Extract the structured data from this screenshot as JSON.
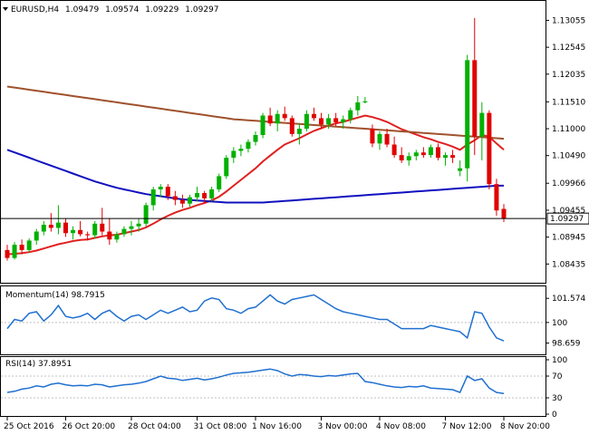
{
  "header": {
    "symbol": "EURUSD,H4",
    "open": "1.09479",
    "high": "1.09574",
    "low": "1.09229",
    "close": "1.09297"
  },
  "colors": {
    "bull": "#00b000",
    "bear": "#e00000",
    "ma_fast": "#e02020",
    "ma_mid": "#a0522d",
    "ma_slow": "#1010c0",
    "indicator": "#2070d0",
    "grid": "#c0c0c0"
  },
  "chart_data": [
    {
      "type": "candlestick",
      "title": "EURUSD,H4",
      "x_labels": [
        "25 Oct 2016",
        "26 Oct 20:00",
        "28 Oct 04:00",
        "31 Oct 08:00",
        "1 Nov 16:00",
        "3 Nov 00:00",
        "4 Nov 08:00",
        "7 Nov 12:00",
        "8 Nov 20:00"
      ],
      "y_ticks": [
        "1.13055",
        "1.12545",
        "1.12035",
        "1.11510",
        "1.11000",
        "1.10490",
        "1.09966",
        "1.09455",
        "1.08945",
        "1.08435"
      ],
      "ylim": [
        1.082,
        1.132
      ],
      "current_price": "1.09297",
      "candles": [
        [
          1.087,
          1.088,
          1.085,
          1.0855
        ],
        [
          1.0855,
          1.0885,
          1.0852,
          1.088
        ],
        [
          1.088,
          1.089,
          1.0862,
          1.087
        ],
        [
          1.087,
          1.0892,
          1.0866,
          1.0888
        ],
        [
          1.0888,
          1.091,
          1.088,
          1.0905
        ],
        [
          1.0905,
          1.0925,
          1.0898,
          1.0918
        ],
        [
          1.0918,
          1.094,
          1.0905,
          1.0912
        ],
        [
          1.0912,
          1.0955,
          1.09,
          1.0922
        ],
        [
          1.0922,
          1.093,
          1.0895,
          1.0902
        ],
        [
          1.0902,
          1.0915,
          1.089,
          1.0908
        ],
        [
          1.0908,
          1.0925,
          1.0896,
          1.09
        ],
        [
          1.09,
          1.0905,
          1.0888,
          1.0898
        ],
        [
          1.0898,
          1.0925,
          1.0892,
          1.092
        ],
        [
          1.092,
          1.095,
          1.0898,
          1.0905
        ],
        [
          1.0905,
          1.093,
          1.088,
          1.089
        ],
        [
          1.089,
          1.0905,
          1.0884,
          1.09
        ],
        [
          1.09,
          1.0915,
          1.0895,
          1.091
        ],
        [
          1.091,
          1.0925,
          1.0898,
          1.0915
        ],
        [
          1.0915,
          1.093,
          1.0905,
          1.092
        ],
        [
          1.092,
          1.096,
          1.0915,
          1.0955
        ],
        [
          1.0955,
          1.099,
          1.0945,
          1.0985
        ],
        [
          1.0985,
          1.0995,
          1.097,
          1.099
        ],
        [
          1.099,
          1.0995,
          1.0965,
          1.0972
        ],
        [
          1.0972,
          1.0982,
          1.0955,
          1.0965
        ],
        [
          1.0965,
          1.0975,
          1.095,
          1.0958
        ],
        [
          1.0958,
          1.0975,
          1.0952,
          1.097
        ],
        [
          1.097,
          1.099,
          1.0962,
          1.0978
        ],
        [
          1.0978,
          1.0982,
          1.0958,
          1.0968
        ],
        [
          1.0968,
          1.099,
          1.0962,
          1.0985
        ],
        [
          1.0985,
          1.1015,
          1.098,
          1.101
        ],
        [
          1.101,
          1.105,
          1.1005,
          1.1045
        ],
        [
          1.1045,
          1.1065,
          1.1035,
          1.1058
        ],
        [
          1.1058,
          1.107,
          1.1048,
          1.1062
        ],
        [
          1.1062,
          1.108,
          1.1055,
          1.1075
        ],
        [
          1.1075,
          1.1095,
          1.1068,
          1.1088
        ],
        [
          1.1088,
          1.113,
          1.1082,
          1.1125
        ],
        [
          1.1125,
          1.114,
          1.1105,
          1.111
        ],
        [
          1.111,
          1.1135,
          1.1095,
          1.1128
        ],
        [
          1.1128,
          1.1142,
          1.1115,
          1.112
        ],
        [
          1.112,
          1.1125,
          1.1085,
          1.109
        ],
        [
          1.109,
          1.111,
          1.107,
          1.11
        ],
        [
          1.11,
          1.1135,
          1.1095,
          1.1128
        ],
        [
          1.1128,
          1.114,
          1.1115,
          1.112
        ],
        [
          1.112,
          1.113,
          1.11,
          1.1108
        ],
        [
          1.1108,
          1.1128,
          1.11,
          1.112
        ],
        [
          1.112,
          1.113,
          1.1105,
          1.1112
        ],
        [
          1.1112,
          1.1125,
          1.11,
          1.1118
        ],
        [
          1.1118,
          1.114,
          1.111,
          1.1135
        ],
        [
          1.1135,
          1.1162,
          1.1125,
          1.115
        ],
        [
          1.115,
          1.116,
          1.1148,
          1.1152
        ],
        [
          1.11,
          1.1108,
          1.1065,
          1.1072
        ],
        [
          1.1072,
          1.1095,
          1.106,
          1.109
        ],
        [
          1.109,
          1.11,
          1.1065,
          1.107
        ],
        [
          1.107,
          1.1085,
          1.1045,
          1.105
        ],
        [
          1.105,
          1.1065,
          1.1035,
          1.104
        ],
        [
          1.104,
          1.1055,
          1.103,
          1.1048
        ],
        [
          1.1048,
          1.106,
          1.104,
          1.1055
        ],
        [
          1.1055,
          1.1065,
          1.1045,
          1.105
        ],
        [
          1.105,
          1.107,
          1.1045,
          1.1065
        ],
        [
          1.1065,
          1.1072,
          1.104,
          1.1045
        ],
        [
          1.1045,
          1.1055,
          1.103,
          1.105
        ],
        [
          1.105,
          1.106,
          1.1035,
          1.1045
        ],
        [
          1.102,
          1.104,
          1.101,
          1.1025
        ],
        [
          1.1025,
          1.124,
          1.1,
          1.123
        ],
        [
          1.123,
          1.131,
          1.105,
          1.1085
        ],
        [
          1.1085,
          1.115,
          1.104,
          1.113
        ],
        [
          1.113,
          1.1135,
          1.0985,
          1.0995
        ],
        [
          1.0995,
          1.1005,
          1.0935,
          1.0945
        ],
        [
          1.0948,
          1.0957,
          1.0923,
          1.093
        ]
      ],
      "series": [
        {
          "name": "",
          "values": [
            1.0862,
            1.0863,
            1.0864,
            1.0866,
            1.0869,
            1.0873,
            1.0877,
            1.0881,
            1.0884,
            1.0887,
            1.0889,
            1.089,
            1.0893,
            1.0896,
            1.0898,
            1.0899,
            1.0902,
            1.0905,
            1.0908,
            1.0913,
            1.092,
            1.0928,
            1.0935,
            1.0941,
            1.0946,
            1.095,
            1.0955,
            1.0959,
            1.0964,
            1.0971,
            1.0981,
            1.0992,
            1.1003,
            1.1014,
            1.1025,
            1.1038,
            1.1049,
            1.106,
            1.107,
            1.1076,
            1.1082,
            1.1089,
            1.1096,
            1.1101,
            1.1106,
            1.111,
            1.1113,
            1.1117,
            1.1121,
            1.1125,
            1.1122,
            1.1118,
            1.1113,
            1.1106,
            1.1099,
            1.1094,
            1.1089,
            1.1084,
            1.108,
            1.1075,
            1.1071,
            1.1066,
            1.106,
            1.107,
            1.1078,
            1.1088,
            1.1085,
            1.1072,
            1.106
          ]
        },
        {
          "name": "",
          "values": [
            1.118,
            1.1178,
            1.1176,
            1.1174,
            1.1172,
            1.117,
            1.1168,
            1.1166,
            1.1164,
            1.1162,
            1.116,
            1.1158,
            1.1156,
            1.1154,
            1.1152,
            1.115,
            1.1148,
            1.1146,
            1.1144,
            1.1142,
            1.114,
            1.1138,
            1.1136,
            1.1134,
            1.1132,
            1.113,
            1.1128,
            1.1126,
            1.1124,
            1.1122,
            1.112,
            1.1118,
            1.1117,
            1.1116,
            1.1115,
            1.1114,
            1.1113,
            1.1112,
            1.1111,
            1.111,
            1.1109,
            1.1108,
            1.1107,
            1.1106,
            1.1105,
            1.1104,
            1.1103,
            1.1102,
            1.1101,
            1.11,
            1.1099,
            1.1098,
            1.1097,
            1.1096,
            1.1095,
            1.1094,
            1.1093,
            1.1092,
            1.1091,
            1.109,
            1.1089,
            1.1088,
            1.1087,
            1.1086,
            1.1085,
            1.1084,
            1.1083,
            1.1082,
            1.1081
          ]
        },
        {
          "name": "",
          "values": [
            1.106,
            1.1055,
            1.105,
            1.1045,
            1.104,
            1.1035,
            1.103,
            1.1025,
            1.102,
            1.1015,
            1.101,
            1.1005,
            1.1,
            1.0996,
            1.0992,
            1.0988,
            1.0985,
            1.0982,
            1.0979,
            1.0976,
            1.0974,
            1.0972,
            1.097,
            1.0968,
            1.0966,
            1.0965,
            1.0964,
            1.0963,
            1.0962,
            1.0961,
            1.096,
            1.096,
            1.096,
            1.096,
            1.096,
            1.096,
            1.0961,
            1.0962,
            1.0963,
            1.0964,
            1.0965,
            1.0966,
            1.0967,
            1.0968,
            1.0969,
            1.097,
            1.0971,
            1.0972,
            1.0973,
            1.0974,
            1.0975,
            1.0976,
            1.0977,
            1.0978,
            1.0979,
            1.098,
            1.0981,
            1.0982,
            1.0983,
            1.0984,
            1.0985,
            1.0986,
            1.0987,
            1.0988,
            1.0989,
            1.099,
            1.0991,
            1.0992,
            1.0992
          ]
        }
      ]
    },
    {
      "type": "line",
      "title": "Momentum(14) 98.7915",
      "y_ticks": [
        "101.574",
        "100",
        "98.659"
      ],
      "ylim": [
        98.1,
        102.0
      ],
      "series": [
        {
          "name": "Momentum(14)",
          "values": [
            99.6,
            100.2,
            100.1,
            100.6,
            100.7,
            100.1,
            100.5,
            101.1,
            100.4,
            100.3,
            100.4,
            100.6,
            100.2,
            100.6,
            100.8,
            100.4,
            100.1,
            100.4,
            100.5,
            100.2,
            100.5,
            100.8,
            100.6,
            100.8,
            101.0,
            100.7,
            100.8,
            101.4,
            101.6,
            101.5,
            100.9,
            100.8,
            100.6,
            100.9,
            101.0,
            101.4,
            101.8,
            101.4,
            101.2,
            101.5,
            101.6,
            101.7,
            101.8,
            101.5,
            101.2,
            100.9,
            100.7,
            100.6,
            100.5,
            100.4,
            100.3,
            100.2,
            100.2,
            99.9,
            99.6,
            99.6,
            99.6,
            99.6,
            99.8,
            99.7,
            99.6,
            99.5,
            99.4,
            99.0,
            100.7,
            100.6,
            99.7,
            99.0,
            98.8
          ]
        }
      ]
    },
    {
      "type": "line",
      "title": "RSI(14) 37.8951",
      "y_ticks": [
        "100",
        "70",
        "30",
        "0"
      ],
      "ylim": [
        0,
        100
      ],
      "series": [
        {
          "name": "RSI(14)",
          "values": [
            40,
            42,
            46,
            48,
            52,
            50,
            55,
            57,
            54,
            52,
            53,
            52,
            55,
            54,
            50,
            52,
            54,
            55,
            57,
            60,
            65,
            70,
            66,
            65,
            62,
            64,
            66,
            63,
            65,
            68,
            72,
            75,
            76,
            77,
            79,
            81,
            83,
            80,
            74,
            70,
            73,
            72,
            70,
            69,
            71,
            70,
            72,
            74,
            75,
            60,
            58,
            55,
            52,
            50,
            49,
            51,
            50,
            52,
            48,
            47,
            46,
            45,
            40,
            70,
            62,
            65,
            48,
            40,
            38
          ]
        }
      ]
    }
  ]
}
